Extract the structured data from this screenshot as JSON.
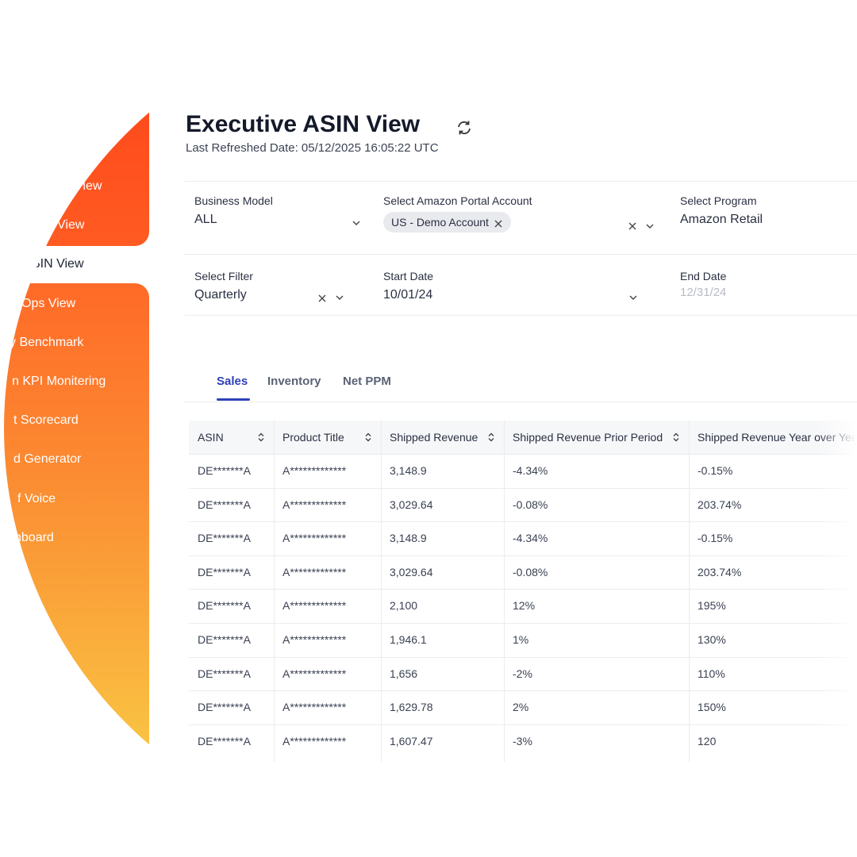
{
  "sidebar": {
    "items": [
      "View",
      "View",
      "SIN View",
      "Ops View",
      "y Benchmark",
      "n KPI Monitering",
      "t Scorecard",
      "d Generator",
      "f Voice",
      "hboard"
    ],
    "active": 2
  },
  "header": {
    "title": "Executive ASIN View",
    "subtitle": "Last Refreshed Date: 05/12/2025 16:05:22 UTC"
  },
  "filters": [
    {
      "label": "Business Model",
      "value": "ALL"
    },
    {
      "label": "Select Amazon Portal Account",
      "chip": "US - Demo Account"
    },
    {
      "label": "Select Program",
      "value": "Amazon Retail"
    },
    {
      "label": "Select Filter",
      "value": "Quarterly"
    },
    {
      "label": "Start Date",
      "value": "10/01/24"
    },
    {
      "label": "End Date",
      "placeholder": "12/31/24"
    }
  ],
  "tabs": [
    "Sales",
    "Inventory",
    "Net PPM"
  ],
  "table": {
    "columns": [
      "ASIN",
      "Product Title",
      "Shipped Revenue",
      "Shipped Revenue Prior Period",
      "Shipped Revenue Year over Year"
    ],
    "rows": [
      [
        "DE*******A",
        "A*************",
        "3,148.9",
        "-4.34%",
        "-0.15%"
      ],
      [
        "DE*******A",
        "A*************",
        "3,029.64",
        "-0.08%",
        "203.74%"
      ],
      [
        "DE*******A",
        "A*************",
        "3,148.9",
        "-4.34%",
        "-0.15%"
      ],
      [
        "DE*******A",
        "A*************",
        "3,029.64",
        "-0.08%",
        "203.74%"
      ],
      [
        "DE*******A",
        "A*************",
        "2,100",
        "12%",
        "195%"
      ],
      [
        "DE*******A",
        "A*************",
        "1,946.1",
        "1%",
        "130%"
      ],
      [
        "DE*******A",
        "A*************",
        "1,656",
        "-2%",
        "110%"
      ],
      [
        "DE*******A",
        "A*************",
        "1,629.78",
        "2%",
        "150%"
      ],
      [
        "DE*******A",
        "A*************",
        "1,607.47",
        "-3%",
        "120"
      ]
    ]
  }
}
